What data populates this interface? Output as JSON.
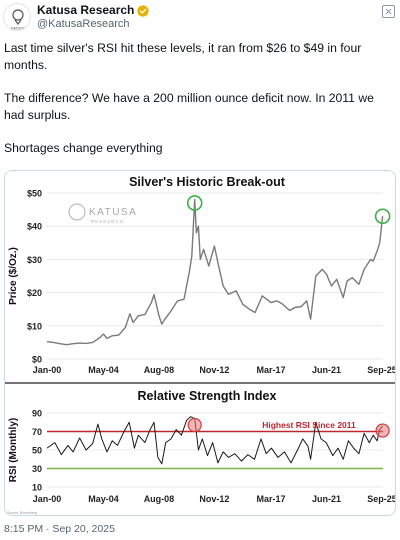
{
  "post": {
    "display_name": "Katusa Research",
    "handle": "@KatusaResearch",
    "paragraphs": [
      "Last time silver's RSI hit these levels, it ran from $26 to $49 in four months.",
      "The difference? We have a 200 million ounce deficit now. In 2011 we had surplus.",
      "Shortages change everything"
    ],
    "timestamp": "8:15 PM · Sep 20, 2025"
  },
  "colors": {
    "price_line": "#7a7a7a",
    "rsi_line": "#1a1a1a",
    "overbought_line": "#c0262d",
    "oversold_line": "#7cb342",
    "peak_circle": "#3cb043",
    "rsi_peak_circle": "#d33a3a"
  },
  "chart_data": [
    {
      "type": "line",
      "title": "Silver's Historic Break-out",
      "watermark": "KATUSA",
      "watermark_sub": "RESEARCH",
      "ylabel": "Price ($/Oz.)",
      "ylim": [
        0,
        50
      ],
      "yticks": [
        0,
        10,
        20,
        30,
        40,
        50
      ],
      "ytick_labels": [
        "$0",
        "$10",
        "$20",
        "$30",
        "$40",
        "$50"
      ],
      "xlim": [
        2000.0,
        2025.75
      ],
      "xticks": [
        2000.0,
        2004.33,
        2008.58,
        2012.83,
        2017.17,
        2021.42,
        2025.67
      ],
      "xtick_labels": [
        "Jan-00",
        "May-04",
        "Aug-08",
        "Nov-12",
        "Mar-17",
        "Jun-21",
        "Sep-25"
      ],
      "series": [
        {
          "x": [
            2000.0,
            2000.5,
            2001.0,
            2001.5,
            2002.0,
            2002.5,
            2003.0,
            2003.5,
            2004.0,
            2004.33,
            2004.6,
            2005.0,
            2005.5,
            2006.0,
            2006.35,
            2006.6,
            2007.0,
            2007.5,
            2008.0,
            2008.2,
            2008.58,
            2008.8,
            2009.0,
            2009.5,
            2010.0,
            2010.5,
            2010.9,
            2011.1,
            2011.32,
            2011.45,
            2011.6,
            2011.75,
            2012.0,
            2012.4,
            2012.83,
            2013.1,
            2013.5,
            2013.9,
            2014.5,
            2015.0,
            2015.5,
            2015.95,
            2016.5,
            2017.17,
            2017.6,
            2018.0,
            2018.6,
            2019.0,
            2019.5,
            2019.9,
            2020.2,
            2020.6,
            2021.1,
            2021.42,
            2021.8,
            2022.2,
            2022.7,
            2023.0,
            2023.4,
            2023.9,
            2024.3,
            2024.8,
            2025.0,
            2025.3,
            2025.5,
            2025.72
          ],
          "y": [
            5.2,
            5.0,
            4.6,
            4.3,
            4.6,
            4.8,
            4.7,
            5.0,
            6.3,
            7.5,
            6.2,
            7.0,
            7.2,
            9.5,
            13.6,
            11.0,
            13.0,
            13.4,
            17.0,
            19.4,
            13.0,
            10.5,
            11.8,
            14.5,
            17.5,
            18.0,
            26.0,
            31.0,
            48.0,
            38.0,
            40.0,
            30.0,
            33.0,
            28.0,
            34.0,
            29.0,
            22.0,
            19.5,
            20.5,
            16.5,
            15.0,
            14.0,
            19.0,
            17.0,
            17.5,
            16.7,
            14.6,
            15.5,
            15.8,
            17.5,
            12.0,
            25.0,
            27.0,
            25.5,
            22.0,
            24.0,
            18.5,
            23.5,
            24.5,
            22.5,
            27.0,
            30.0,
            29.5,
            32.5,
            35.0,
            43.0
          ]
        }
      ],
      "annotations": [
        {
          "type": "circle",
          "x": 2011.32,
          "y": 47.0
        },
        {
          "type": "circle",
          "x": 2025.72,
          "y": 43.0
        }
      ]
    },
    {
      "type": "line",
      "title": "Relative Strength Index",
      "ylabel": "RSI (Monthly)",
      "ylim": [
        10,
        90
      ],
      "yticks": [
        10,
        30,
        50,
        70,
        90
      ],
      "ytick_labels": [
        "10",
        "30",
        "50",
        "70",
        "90"
      ],
      "xlim": [
        2000.0,
        2025.75
      ],
      "xticks": [
        2000.0,
        2004.33,
        2008.58,
        2012.83,
        2017.17,
        2021.42,
        2025.67
      ],
      "xtick_labels": [
        "Jan-00",
        "May-04",
        "Aug-08",
        "Nov-12",
        "Mar-17",
        "Jun-21",
        "Sep-25"
      ],
      "reference_lines": [
        70,
        30
      ],
      "annotation_text": "Highest RSI Since 2011",
      "source_text": "Source: Bloomberg",
      "series": [
        {
          "x": [
            2000.0,
            2000.6,
            2001.1,
            2001.6,
            2002.0,
            2002.5,
            2003.0,
            2003.5,
            2003.9,
            2004.2,
            2004.6,
            2005.0,
            2005.4,
            2005.9,
            2006.3,
            2006.7,
            2007.0,
            2007.5,
            2007.9,
            2008.2,
            2008.5,
            2008.8,
            2009.1,
            2009.5,
            2009.9,
            2010.3,
            2010.7,
            2011.0,
            2011.32,
            2011.6,
            2011.9,
            2012.3,
            2012.7,
            2013.1,
            2013.5,
            2013.9,
            2014.4,
            2014.9,
            2015.4,
            2015.9,
            2016.4,
            2016.8,
            2017.2,
            2017.7,
            2018.2,
            2018.7,
            2019.2,
            2019.6,
            2020.0,
            2020.2,
            2020.6,
            2021.0,
            2021.4,
            2021.9,
            2022.3,
            2022.7,
            2023.1,
            2023.5,
            2023.9,
            2024.3,
            2024.7,
            2025.0,
            2025.3,
            2025.5,
            2025.72
          ],
          "y": [
            52,
            58,
            45,
            55,
            48,
            63,
            50,
            57,
            78,
            62,
            48,
            60,
            55,
            70,
            80,
            52,
            66,
            58,
            72,
            80,
            42,
            35,
            58,
            62,
            72,
            66,
            82,
            86,
            84,
            50,
            62,
            44,
            58,
            36,
            48,
            42,
            46,
            38,
            45,
            40,
            62,
            46,
            52,
            42,
            48,
            36,
            50,
            62,
            54,
            40,
            80,
            62,
            58,
            44,
            52,
            40,
            60,
            52,
            46,
            68,
            58,
            66,
            60,
            72,
            76
          ]
        }
      ],
      "annotations": [
        {
          "type": "circle",
          "x": 2011.32,
          "y": 77
        },
        {
          "type": "circle",
          "x": 2025.72,
          "y": 71
        }
      ]
    }
  ]
}
